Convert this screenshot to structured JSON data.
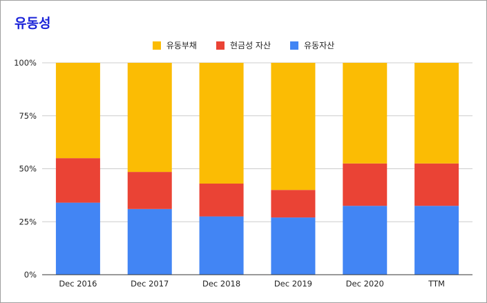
{
  "chart_data": {
    "type": "bar",
    "stacked": true,
    "normalized": true,
    "title": "유동성",
    "categories": [
      "Dec 2016",
      "Dec 2017",
      "Dec 2018",
      "Dec 2019",
      "Dec 2020",
      "TTM"
    ],
    "series": [
      {
        "name": "유동자산",
        "color": "#4285f4",
        "values": [
          34,
          31,
          27.5,
          27,
          32.5,
          32.5
        ]
      },
      {
        "name": "현금성 자산",
        "color": "#ea4335",
        "values": [
          21,
          17.5,
          15.5,
          13,
          20,
          20
        ]
      },
      {
        "name": "유동부채",
        "color": "#fbbc04",
        "values": [
          45,
          51.5,
          57,
          60,
          47.5,
          47.5
        ]
      }
    ],
    "legend_order": [
      "유동부채",
      "현금성 자산",
      "유동자산"
    ],
    "ylim": [
      0,
      100
    ],
    "yticks": [
      "0%",
      "25%",
      "50%",
      "75%",
      "100%"
    ],
    "grid": true,
    "legend_position": "top"
  }
}
